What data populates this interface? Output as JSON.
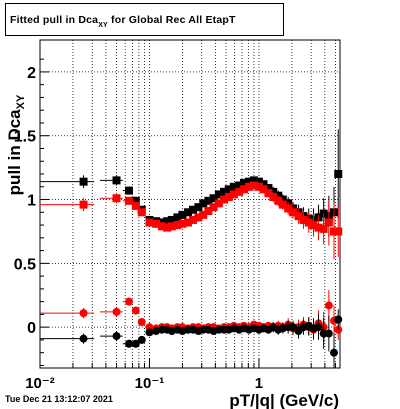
{
  "title": {
    "prefix": "Fitted pull in Dca",
    "subscript": "XY",
    "suffix": " for Global Rec All EtapT"
  },
  "timestamp": "Tue Dec 21 13:12:07 2021",
  "chart_data": {
    "type": "scatter",
    "xlabel": "pT/|q| (GeV/c)",
    "ylabel": "pull in Dca",
    "ylabel_subscript": "XY",
    "x_scale": "log",
    "xlim": [
      0.01,
      5.5
    ],
    "ylim": [
      -0.32,
      2.25
    ],
    "x_major_ticks": [
      0.01,
      0.1,
      1
    ],
    "x_tick_labels": [
      "10⁻²",
      "10⁻¹",
      "1"
    ],
    "y_ticks": [
      0,
      0.5,
      1,
      1.5,
      2
    ],
    "y_tick_labels": [
      "0",
      "0.5",
      "1",
      "1.5",
      "2"
    ],
    "grid": true,
    "series": [
      {
        "marker": "square",
        "color": "#000000",
        "points": [
          [
            0.025,
            1.14,
            0.05
          ],
          [
            0.05,
            1.15,
            0.04
          ],
          [
            0.065,
            1.07,
            0.03
          ],
          [
            0.075,
            0.99,
            0.03
          ],
          [
            0.085,
            0.92,
            0.03
          ],
          [
            0.1,
            0.84,
            0.02
          ],
          [
            0.115,
            0.83,
            0.02
          ],
          [
            0.13,
            0.82,
            0.02
          ],
          [
            0.145,
            0.83,
            0.02
          ],
          [
            0.16,
            0.84,
            0.02
          ],
          [
            0.18,
            0.86,
            0.02
          ],
          [
            0.2,
            0.88,
            0.02
          ],
          [
            0.225,
            0.9,
            0.02
          ],
          [
            0.25,
            0.92,
            0.02
          ],
          [
            0.28,
            0.94,
            0.02
          ],
          [
            0.31,
            0.97,
            0.02
          ],
          [
            0.345,
            0.99,
            0.02
          ],
          [
            0.385,
            1.01,
            0.02
          ],
          [
            0.43,
            1.04,
            0.02
          ],
          [
            0.48,
            1.06,
            0.02
          ],
          [
            0.53,
            1.08,
            0.02
          ],
          [
            0.59,
            1.1,
            0.02
          ],
          [
            0.66,
            1.11,
            0.02
          ],
          [
            0.73,
            1.13,
            0.02
          ],
          [
            0.81,
            1.14,
            0.03
          ],
          [
            0.9,
            1.15,
            0.03
          ],
          [
            1.0,
            1.14,
            0.03
          ],
          [
            1.1,
            1.12,
            0.03
          ],
          [
            1.22,
            1.09,
            0.03
          ],
          [
            1.35,
            1.06,
            0.04
          ],
          [
            1.5,
            1.03,
            0.04
          ],
          [
            1.65,
            1.0,
            0.04
          ],
          [
            1.85,
            0.97,
            0.05
          ],
          [
            2.05,
            0.93,
            0.05
          ],
          [
            2.3,
            0.9,
            0.06
          ],
          [
            2.55,
            0.87,
            0.07
          ],
          [
            2.85,
            0.85,
            0.08
          ],
          [
            3.15,
            0.84,
            0.09
          ],
          [
            3.5,
            0.86,
            0.1
          ],
          [
            3.9,
            0.89,
            0.12
          ],
          [
            4.35,
            0.87,
            0.16
          ],
          [
            4.85,
            0.9,
            0.2
          ],
          [
            5.3,
            1.2,
            0.35
          ]
        ]
      },
      {
        "marker": "square",
        "color": "#ff0000",
        "points": [
          [
            0.025,
            0.96,
            0.05
          ],
          [
            0.05,
            1.01,
            0.04
          ],
          [
            0.065,
            0.99,
            0.03
          ],
          [
            0.075,
            0.95,
            0.03
          ],
          [
            0.085,
            0.9,
            0.03
          ],
          [
            0.1,
            0.82,
            0.02
          ],
          [
            0.115,
            0.81,
            0.02
          ],
          [
            0.13,
            0.79,
            0.02
          ],
          [
            0.145,
            0.78,
            0.02
          ],
          [
            0.16,
            0.79,
            0.02
          ],
          [
            0.18,
            0.8,
            0.02
          ],
          [
            0.2,
            0.81,
            0.02
          ],
          [
            0.225,
            0.82,
            0.02
          ],
          [
            0.25,
            0.84,
            0.02
          ],
          [
            0.28,
            0.86,
            0.02
          ],
          [
            0.31,
            0.88,
            0.02
          ],
          [
            0.345,
            0.91,
            0.02
          ],
          [
            0.385,
            0.94,
            0.02
          ],
          [
            0.43,
            0.97,
            0.02
          ],
          [
            0.48,
            1.0,
            0.02
          ],
          [
            0.53,
            1.02,
            0.02
          ],
          [
            0.59,
            1.04,
            0.02
          ],
          [
            0.66,
            1.06,
            0.02
          ],
          [
            0.73,
            1.08,
            0.02
          ],
          [
            0.81,
            1.1,
            0.03
          ],
          [
            0.9,
            1.11,
            0.03
          ],
          [
            1.0,
            1.1,
            0.03
          ],
          [
            1.1,
            1.08,
            0.03
          ],
          [
            1.22,
            1.05,
            0.03
          ],
          [
            1.35,
            1.02,
            0.04
          ],
          [
            1.5,
            0.99,
            0.04
          ],
          [
            1.65,
            0.96,
            0.04
          ],
          [
            1.85,
            0.93,
            0.05
          ],
          [
            2.05,
            0.9,
            0.05
          ],
          [
            2.3,
            0.87,
            0.06
          ],
          [
            2.55,
            0.84,
            0.07
          ],
          [
            2.85,
            0.82,
            0.08
          ],
          [
            3.15,
            0.8,
            0.09
          ],
          [
            3.5,
            0.78,
            0.1
          ],
          [
            3.9,
            0.77,
            0.12
          ],
          [
            4.35,
            0.82,
            0.18
          ],
          [
            4.85,
            0.75,
            0.22
          ],
          [
            5.3,
            0.75,
            0.2
          ]
        ]
      },
      {
        "marker": "circle",
        "color": "#ff0000",
        "points": [
          [
            0.025,
            0.11,
            0.04
          ],
          [
            0.05,
            0.12,
            0.04
          ],
          [
            0.065,
            0.2,
            0.03
          ],
          [
            0.075,
            0.13,
            0.03
          ],
          [
            0.085,
            0.04,
            0.03
          ],
          [
            0.1,
            0.0,
            0.02
          ],
          [
            0.115,
            -0.01,
            0.02
          ],
          [
            0.13,
            0.0,
            0.02
          ],
          [
            0.145,
            0.0,
            0.02
          ],
          [
            0.16,
            -0.01,
            0.02
          ],
          [
            0.18,
            0.0,
            0.02
          ],
          [
            0.2,
            0.0,
            0.02
          ],
          [
            0.225,
            -0.01,
            0.02
          ],
          [
            0.25,
            0.0,
            0.02
          ],
          [
            0.28,
            0.0,
            0.02
          ],
          [
            0.31,
            -0.01,
            0.02
          ],
          [
            0.345,
            0.0,
            0.02
          ],
          [
            0.385,
            0.0,
            0.02
          ],
          [
            0.43,
            -0.01,
            0.02
          ],
          [
            0.48,
            0.0,
            0.02
          ],
          [
            0.53,
            0.0,
            0.02
          ],
          [
            0.59,
            0.01,
            0.02
          ],
          [
            0.66,
            0.0,
            0.02
          ],
          [
            0.73,
            0.01,
            0.02
          ],
          [
            0.81,
            0.0,
            0.03
          ],
          [
            0.9,
            0.02,
            0.03
          ],
          [
            1.0,
            0.01,
            0.03
          ],
          [
            1.1,
            0.0,
            0.03
          ],
          [
            1.22,
            0.01,
            0.03
          ],
          [
            1.35,
            0.0,
            0.04
          ],
          [
            1.5,
            0.01,
            0.04
          ],
          [
            1.65,
            0.0,
            0.04
          ],
          [
            1.85,
            0.02,
            0.05
          ],
          [
            2.05,
            -0.01,
            0.05
          ],
          [
            2.3,
            0.0,
            0.06
          ],
          [
            2.55,
            0.02,
            0.06
          ],
          [
            2.85,
            0.0,
            0.07
          ],
          [
            3.15,
            -0.02,
            0.08
          ],
          [
            3.5,
            0.03,
            0.1
          ],
          [
            3.9,
            0.0,
            0.12
          ],
          [
            4.35,
            0.17,
            0.12
          ],
          [
            4.85,
            0.05,
            0.12
          ],
          [
            5.3,
            -0.02,
            0.08
          ]
        ]
      },
      {
        "marker": "circle",
        "color": "#000000",
        "points": [
          [
            0.025,
            -0.09,
            0.04
          ],
          [
            0.05,
            -0.07,
            0.04
          ],
          [
            0.065,
            -0.13,
            0.03
          ],
          [
            0.075,
            -0.13,
            0.03
          ],
          [
            0.085,
            -0.1,
            0.03
          ],
          [
            0.1,
            -0.04,
            0.02
          ],
          [
            0.115,
            -0.03,
            0.02
          ],
          [
            0.13,
            -0.02,
            0.02
          ],
          [
            0.145,
            -0.02,
            0.02
          ],
          [
            0.16,
            -0.03,
            0.02
          ],
          [
            0.18,
            -0.02,
            0.02
          ],
          [
            0.2,
            -0.03,
            0.02
          ],
          [
            0.225,
            -0.02,
            0.02
          ],
          [
            0.25,
            -0.02,
            0.02
          ],
          [
            0.28,
            -0.03,
            0.02
          ],
          [
            0.31,
            -0.02,
            0.02
          ],
          [
            0.345,
            -0.02,
            0.02
          ],
          [
            0.385,
            -0.03,
            0.02
          ],
          [
            0.43,
            -0.02,
            0.02
          ],
          [
            0.48,
            -0.02,
            0.02
          ],
          [
            0.53,
            -0.02,
            0.02
          ],
          [
            0.59,
            -0.01,
            0.02
          ],
          [
            0.66,
            -0.02,
            0.02
          ],
          [
            0.73,
            -0.01,
            0.02
          ],
          [
            0.81,
            -0.02,
            0.03
          ],
          [
            0.9,
            -0.01,
            0.03
          ],
          [
            1.0,
            -0.02,
            0.03
          ],
          [
            1.1,
            -0.01,
            0.03
          ],
          [
            1.22,
            -0.02,
            0.03
          ],
          [
            1.35,
            0.0,
            0.04
          ],
          [
            1.5,
            -0.02,
            0.04
          ],
          [
            1.65,
            -0.01,
            0.04
          ],
          [
            1.85,
            0.0,
            0.05
          ],
          [
            2.05,
            0.0,
            0.05
          ],
          [
            2.3,
            -0.03,
            0.06
          ],
          [
            2.55,
            0.0,
            0.06
          ],
          [
            2.85,
            0.01,
            0.07
          ],
          [
            3.15,
            -0.01,
            0.08
          ],
          [
            3.5,
            0.0,
            0.1
          ],
          [
            3.9,
            -0.05,
            0.12
          ],
          [
            4.35,
            -0.05,
            0.14
          ],
          [
            4.85,
            -0.2,
            0.15
          ],
          [
            5.3,
            0.06,
            0.08
          ]
        ]
      }
    ]
  }
}
